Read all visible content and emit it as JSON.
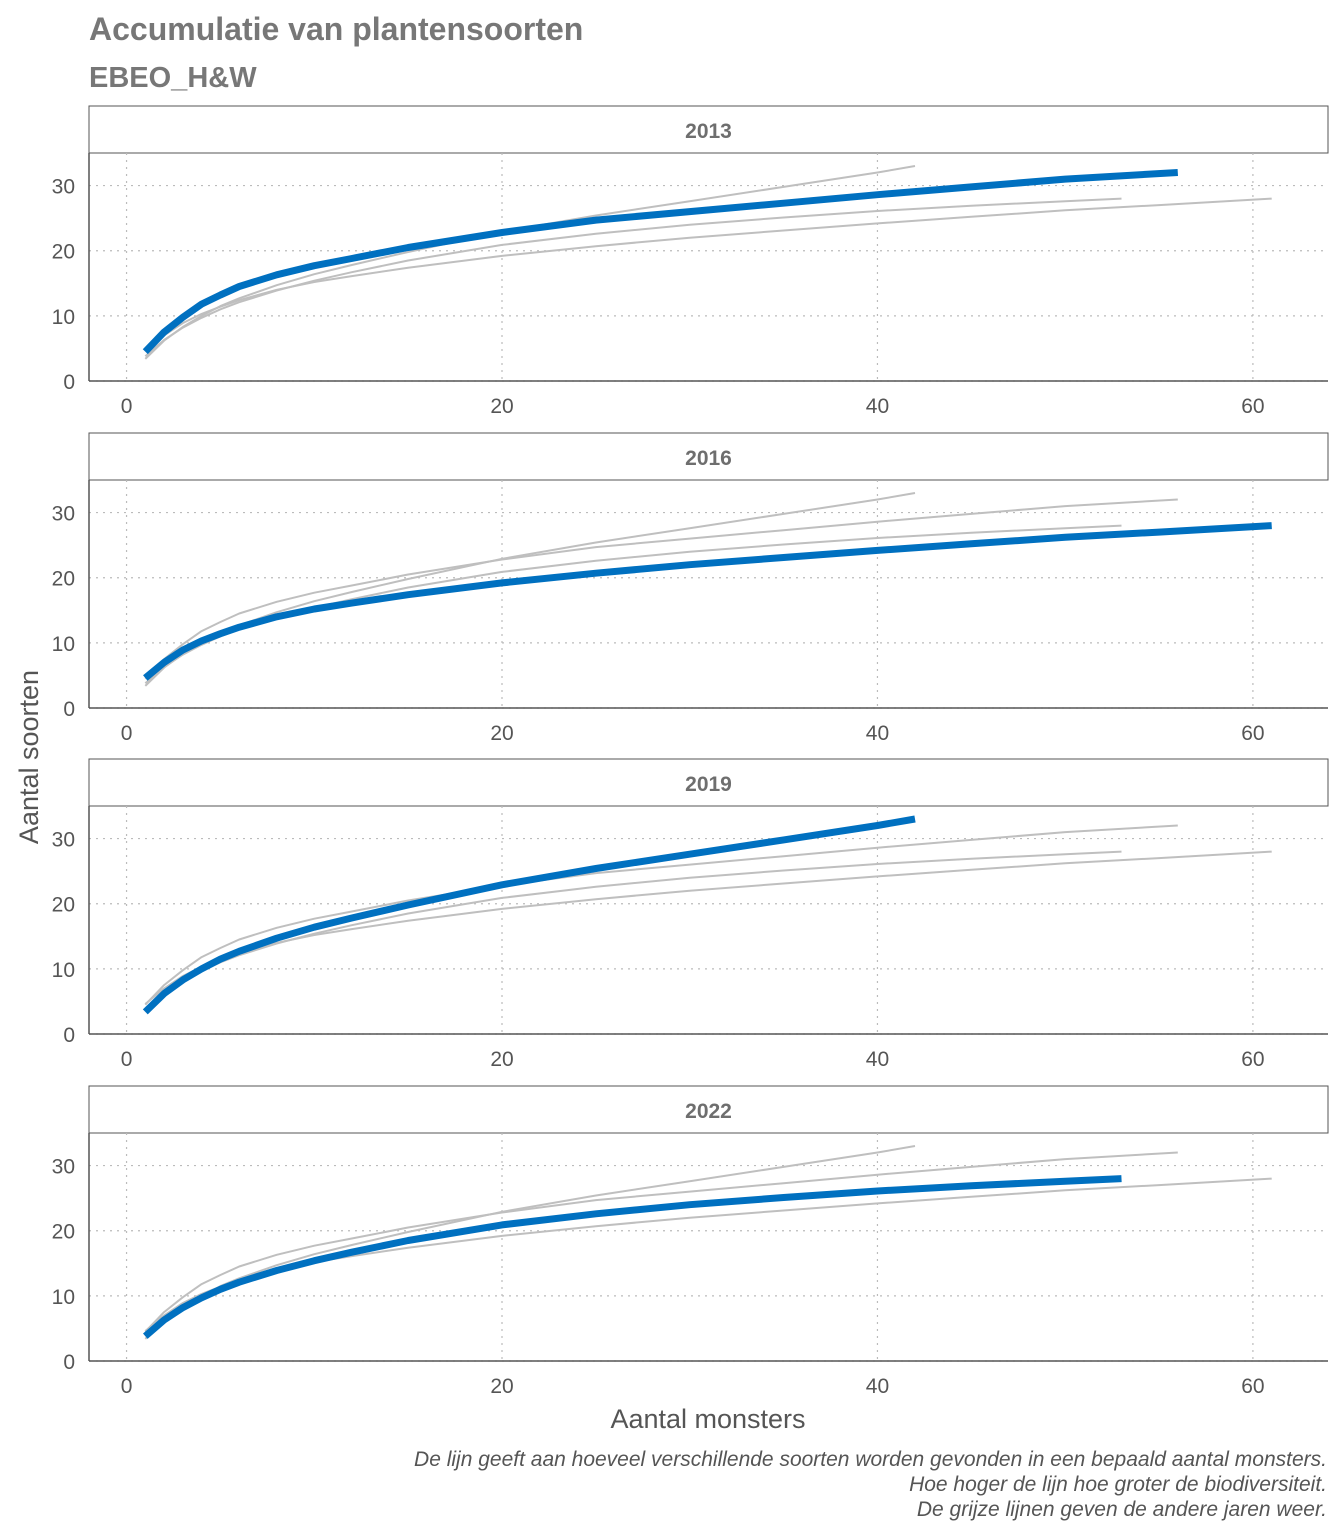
{
  "chart_data": {
    "type": "line",
    "title": "Accumulatie van plantensoorten",
    "subtitle": "EBEO_H&W",
    "xlabel": "Aantal monsters",
    "ylabel": "Aantal soorten",
    "xlim": [
      -2,
      64
    ],
    "ylim": [
      0,
      35
    ],
    "xticks": [
      "0",
      "20",
      "40",
      "60"
    ],
    "yticks": [
      "0",
      "10",
      "20",
      "30"
    ],
    "grid": true,
    "caption": [
      "De lijn geeft aan hoeveel verschillende soorten worden gevonden in een bepaald aantal monsters.",
      "Hoe hoger de lijn hoe groter de biodiversiteit.",
      "De grijze lijnen geven de andere jaren weer."
    ],
    "colors": {
      "highlight": "#0070C0",
      "others": "#BFBFBF",
      "axis": "#555555",
      "grid": "#BBBBBB"
    },
    "series": [
      {
        "name": "2013",
        "x": [
          1,
          2,
          3,
          4,
          5,
          6,
          8,
          10,
          12,
          15,
          20,
          25,
          30,
          35,
          40,
          45,
          50,
          56
        ],
        "y": [
          4.5,
          7.5,
          9.8,
          11.8,
          13.2,
          14.5,
          16.3,
          17.7,
          18.8,
          20.5,
          22.8,
          24.7,
          26,
          27.3,
          28.6,
          29.8,
          31,
          32
        ]
      },
      {
        "name": "2016",
        "x": [
          1,
          2,
          3,
          4,
          5,
          6,
          8,
          10,
          12,
          15,
          20,
          25,
          30,
          35,
          40,
          45,
          50,
          55,
          61
        ],
        "y": [
          4.6,
          7,
          8.9,
          10.3,
          11.4,
          12.4,
          14,
          15.2,
          16.1,
          17.4,
          19.2,
          20.7,
          22,
          23.1,
          24.2,
          25.2,
          26.2,
          27,
          28
        ]
      },
      {
        "name": "2019",
        "x": [
          1,
          2,
          3,
          4,
          5,
          6,
          8,
          10,
          12,
          15,
          20,
          25,
          30,
          35,
          40,
          42
        ],
        "y": [
          3.4,
          6.2,
          8.3,
          10,
          11.5,
          12.7,
          14.7,
          16.4,
          17.8,
          19.8,
          22.9,
          25.4,
          27.6,
          29.8,
          32,
          33
        ]
      },
      {
        "name": "2022",
        "x": [
          1,
          2,
          3,
          4,
          5,
          6,
          8,
          10,
          12,
          15,
          20,
          25,
          30,
          35,
          40,
          45,
          50,
          53
        ],
        "y": [
          3.8,
          6.3,
          8.2,
          9.7,
          11,
          12.1,
          13.9,
          15.4,
          16.7,
          18.5,
          20.9,
          22.6,
          24,
          25.1,
          26.1,
          26.9,
          27.6,
          28
        ]
      }
    ]
  }
}
